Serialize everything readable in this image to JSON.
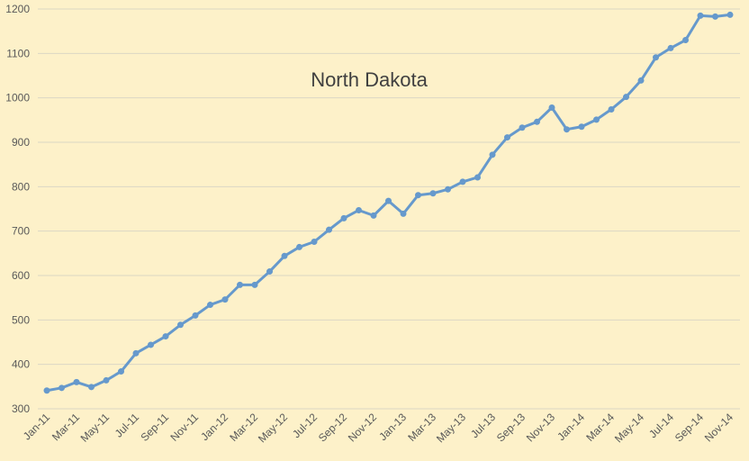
{
  "chart_data": {
    "type": "line",
    "title": "North Dakota",
    "categories": [
      "Jan-11",
      null,
      "Mar-11",
      null,
      "May-11",
      null,
      "Jul-11",
      null,
      "Sep-11",
      null,
      "Nov-11",
      null,
      "Jan-12",
      null,
      "Mar-12",
      null,
      "May-12",
      null,
      "Jul-12",
      null,
      "Sep-12",
      null,
      "Nov-12",
      null,
      "Jan-13",
      null,
      "Mar-13",
      null,
      "May-13",
      null,
      "Jul-13",
      null,
      "Sep-13",
      null,
      "Nov-13",
      null,
      "Jan-14",
      null,
      "Mar-14",
      null,
      "May-14",
      null,
      "Jul-14",
      null,
      "Sep-14",
      null,
      "Nov-14"
    ],
    "values": [
      341,
      347,
      360,
      349,
      364,
      384,
      425,
      444,
      463,
      489,
      510,
      534,
      546,
      579,
      579,
      609,
      644,
      664,
      676,
      703,
      729,
      747,
      735,
      768,
      739,
      781,
      785,
      794,
      811,
      821,
      872,
      911,
      933,
      946,
      978,
      929,
      935,
      951,
      974,
      1002,
      1039,
      1091,
      1112,
      1130,
      1185,
      1183,
      1187
    ],
    "color": "#6699cc",
    "ylim": [
      300,
      1200
    ],
    "yticks": [
      300,
      400,
      500,
      600,
      700,
      800,
      900,
      1000,
      1100,
      1200
    ],
    "grid": true
  }
}
